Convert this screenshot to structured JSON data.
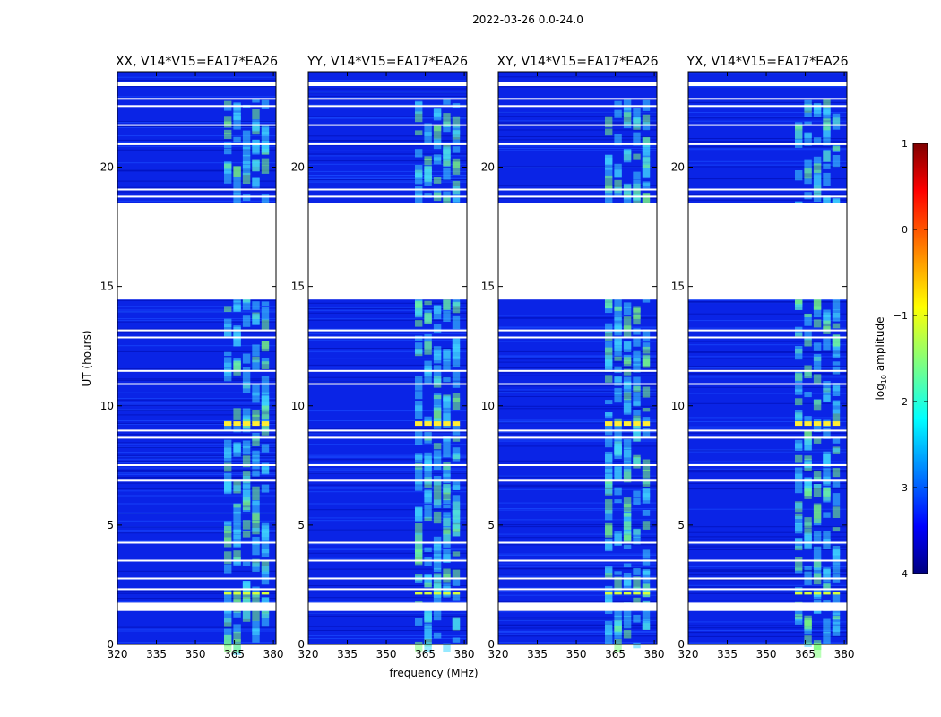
{
  "figure": {
    "suptitle": "2022-03-26 0.0-24.0",
    "xlabel": "frequency (MHz)",
    "ylabel": "UT (hours)"
  },
  "chart_data": {
    "type": "heatmap",
    "title": "2022-03-26 0.0-24.0",
    "xlabel": "frequency (MHz)",
    "ylabel": "UT (hours)",
    "xlim": [
      320,
      381
    ],
    "ylim": [
      0,
      24
    ],
    "xticks": [
      320,
      335,
      350,
      365,
      380
    ],
    "yticks": [
      0,
      5,
      10,
      15,
      20
    ],
    "panels": [
      {
        "title": "XX, V14*V15=EA17*EA26",
        "pol": "XX"
      },
      {
        "title": "YY, V14*V15=EA17*EA26",
        "pol": "YY"
      },
      {
        "title": "XY, V14*V15=EA17*EA26",
        "pol": "XY"
      },
      {
        "title": "YX, V14*V15=EA17*EA26",
        "pol": "YX"
      }
    ],
    "data_gaps_hours": [
      [
        14.45,
        18.5
      ],
      [
        1.4,
        1.75
      ],
      [
        23.4,
        23.55
      ]
    ],
    "rfi_band_mhz": [
      361,
      379
    ],
    "colorbar": {
      "label": "log10 amplitude",
      "range": [
        -4,
        1
      ],
      "ticks": [
        1,
        0,
        -1,
        -2,
        -3,
        -4
      ],
      "tick_labels": [
        "1",
        "0",
        "−1",
        "−2",
        "−3",
        "−4"
      ],
      "colormap": "jet",
      "colors": [
        "#00007f",
        "#0000ff",
        "#00ffff",
        "#ffff00",
        "#ff0000",
        "#7f0000"
      ]
    }
  }
}
